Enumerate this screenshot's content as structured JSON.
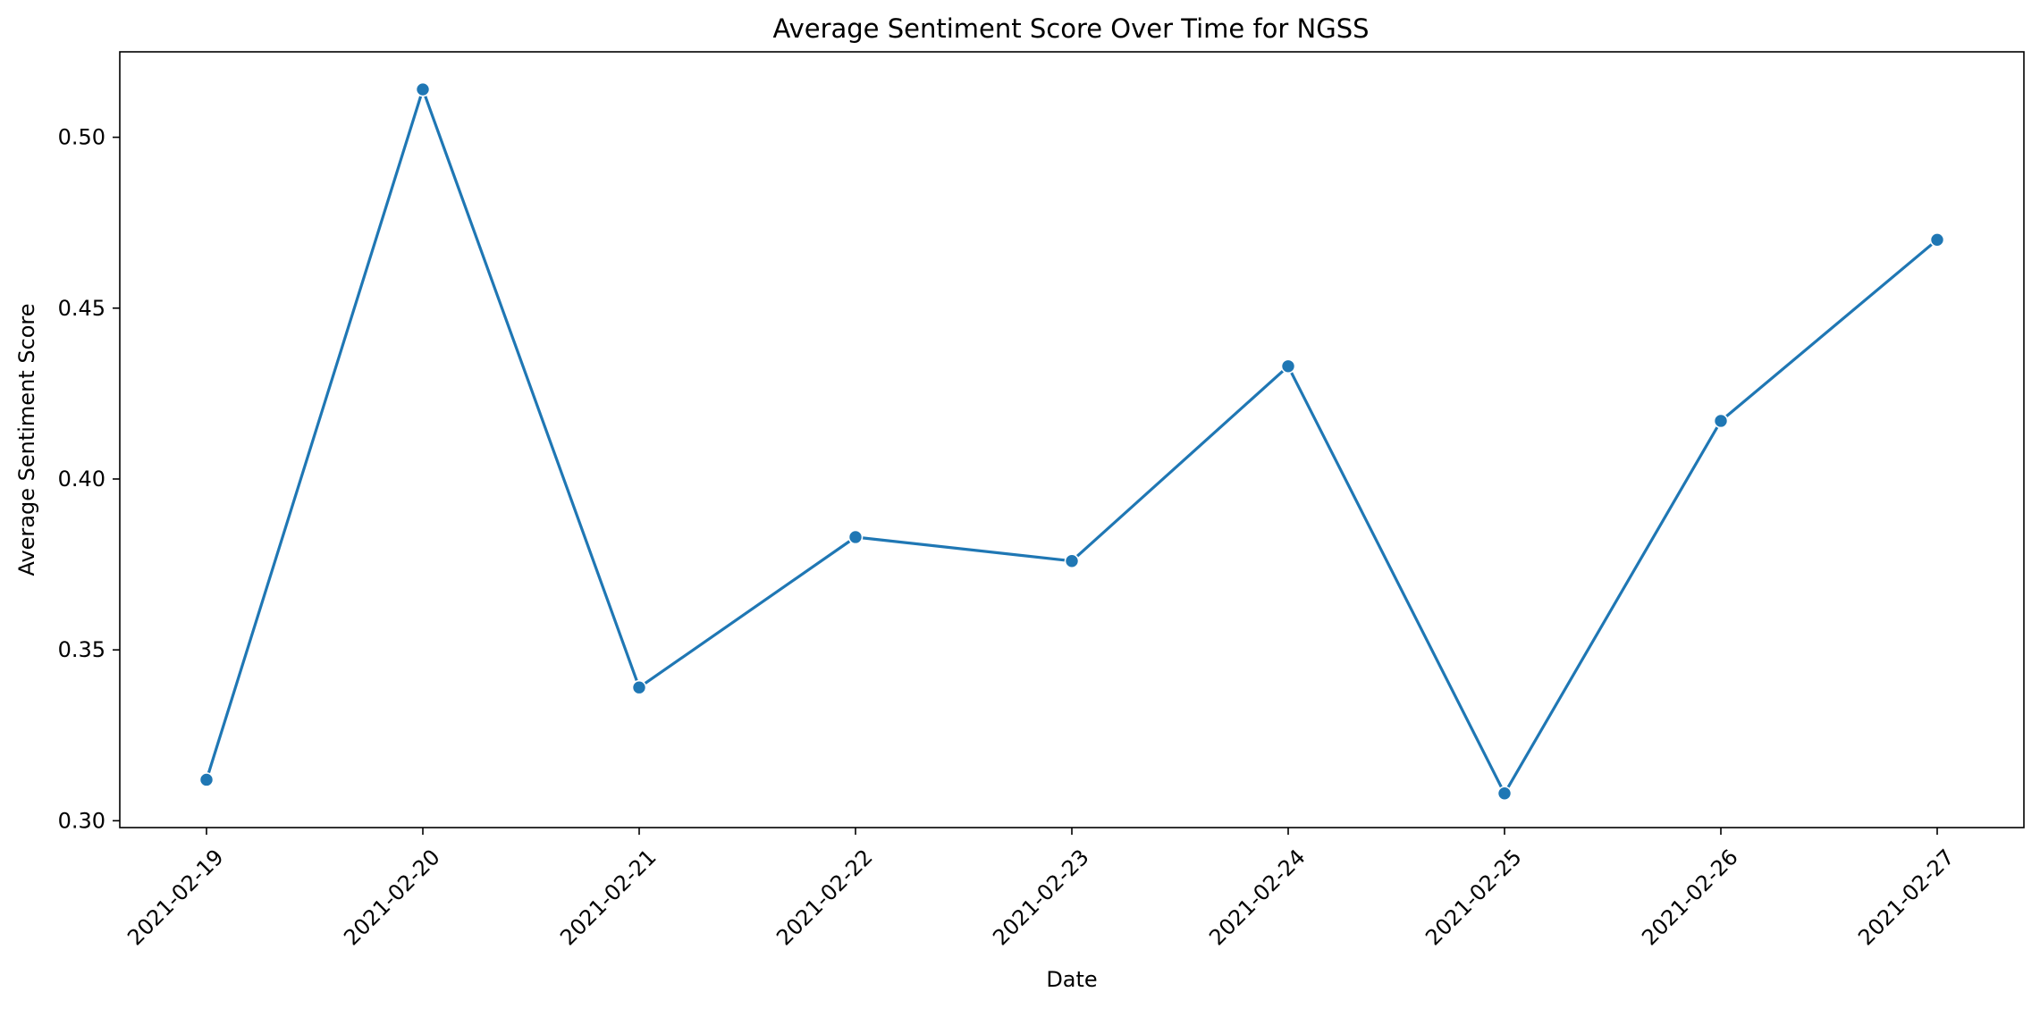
{
  "chart_data": {
    "type": "line",
    "title": "Average Sentiment Score Over Time for NGSS",
    "xlabel": "Date",
    "ylabel": "Average Sentiment Score",
    "categories": [
      "2021-02-19",
      "2021-02-20",
      "2021-02-21",
      "2021-02-22",
      "2021-02-23",
      "2021-02-24",
      "2021-02-25",
      "2021-02-26",
      "2021-02-27"
    ],
    "series": [
      {
        "values": [
          0.312,
          0.514,
          0.339,
          0.383,
          0.376,
          0.433,
          0.308,
          0.417,
          0.47
        ]
      }
    ],
    "ylim": [
      0.298,
      0.525
    ],
    "yticks": [
      "0.30",
      "0.35",
      "0.40",
      "0.45",
      "0.50"
    ],
    "ytick_values": [
      0.3,
      0.35,
      0.4,
      0.45,
      0.5
    ],
    "grid": false,
    "legend": "none",
    "colors": {
      "line": "#1f77b4",
      "marker": "#1f77b4",
      "marker_edge": "#ffffff",
      "axes": "#000000"
    }
  }
}
